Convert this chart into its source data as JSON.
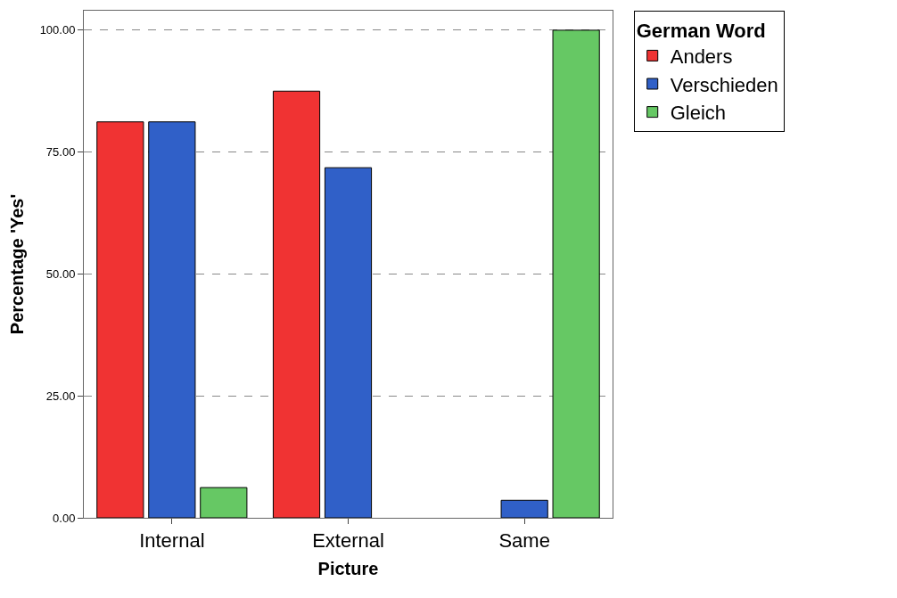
{
  "chart_data": {
    "type": "bar",
    "xlabel": "Picture",
    "ylabel": "Percentage 'Yes'",
    "legend_title": "German Word",
    "categories": [
      "Internal",
      "External",
      "Same"
    ],
    "series": [
      {
        "name": "Anders",
        "color": "#f03333",
        "values": [
          81.2,
          87.5,
          null
        ]
      },
      {
        "name": "Verschieden",
        "color": "#3060c8",
        "values": [
          81.2,
          71.8,
          3.6
        ]
      },
      {
        "name": "Gleich",
        "color": "#66c864",
        "values": [
          6.2,
          null,
          100
        ]
      }
    ],
    "ylim": [
      0,
      104
    ],
    "yticks": [
      {
        "value": 0,
        "label": "0.00"
      },
      {
        "value": 25,
        "label": "25.00"
      },
      {
        "value": 50,
        "label": "50.00"
      },
      {
        "value": 75,
        "label": "75.00"
      },
      {
        "value": 100,
        "label": "100.00"
      }
    ],
    "grid": "y",
    "legend": "top right"
  }
}
